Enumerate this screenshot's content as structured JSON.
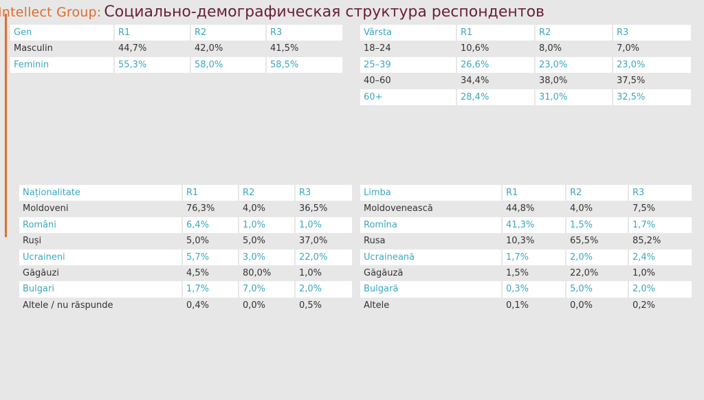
{
  "header": {
    "brand": "Intellect Group:",
    "title": "Социально-демографическая структура респондентов"
  },
  "colors": {
    "accent": "#e06c2c",
    "title": "#6b1f3b",
    "highlight_text": "#3aa6bf"
  },
  "tables": {
    "gen": {
      "headers": [
        "Gen",
        "R1",
        "R2",
        "R3"
      ],
      "rows": [
        [
          "Masculin",
          "44,7%",
          "42,0%",
          "41,5%"
        ],
        [
          "Feminin",
          "55,3%",
          "58,0%",
          "58,5%"
        ]
      ]
    },
    "varsta": {
      "headers": [
        "Vârsta",
        "R1",
        "R2",
        "R3"
      ],
      "rows": [
        [
          "18–24",
          "10,6%",
          "8,0%",
          "7,0%"
        ],
        [
          "25–39",
          "26,6%",
          "23,0%",
          "23,0%"
        ],
        [
          "40–60",
          "34,4%",
          "38,0%",
          "37,5%"
        ],
        [
          "60+",
          "28,4%",
          "31,0%",
          "32,5%"
        ]
      ]
    },
    "nationalitate": {
      "headers": [
        "Naționalitate",
        "R1",
        "R2",
        "R3"
      ],
      "rows": [
        [
          "Moldoveni",
          "76,3%",
          "4,0%",
          "36,5%"
        ],
        [
          "Români",
          "6,4%",
          "1,0%",
          "1,0%"
        ],
        [
          "Ruși",
          "5,0%",
          "5,0%",
          "37,0%"
        ],
        [
          "Ucraineni",
          "5,7%",
          "3,0%",
          "22,0%"
        ],
        [
          "Găgăuzi",
          "4,5%",
          "80,0%",
          "1,0%"
        ],
        [
          "Bulgari",
          "1,7%",
          "7,0%",
          "2,0%"
        ],
        [
          "Altele / nu răspunde",
          "0,4%",
          "0,0%",
          "0,5%"
        ]
      ]
    },
    "limba": {
      "headers": [
        "Limba",
        "R1",
        "R2",
        "R3"
      ],
      "rows": [
        [
          "Moldovenească",
          "44,8%",
          "4,0%",
          "7,5%"
        ],
        [
          "Romîna",
          "41,3%",
          "1,5%",
          "1,7%"
        ],
        [
          "Rusa",
          "10,3%",
          "65,5%",
          "85,2%"
        ],
        [
          "Ucraineană",
          "1,7%",
          "2,0%",
          "2,4%"
        ],
        [
          "Găgăuză",
          "1,5%",
          "22,0%",
          "1,0%"
        ],
        [
          "Bulgară",
          "0,3%",
          "5,0%",
          "2,0%"
        ],
        [
          "Altele",
          "0,1%",
          "0,0%",
          "0,2%"
        ]
      ]
    }
  }
}
